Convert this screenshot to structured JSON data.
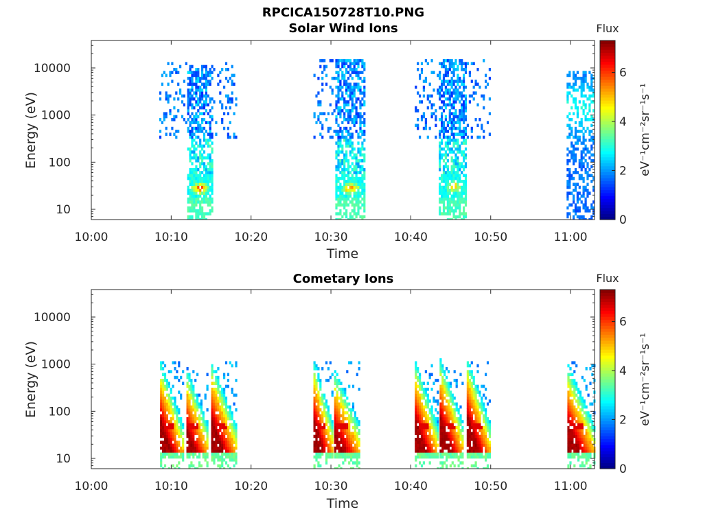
{
  "figure_title": "RPCICA150728T10.PNG",
  "colors": {
    "jet": [
      "#00008f",
      "#0000ff",
      "#0080ff",
      "#00ffff",
      "#80ff80",
      "#ffff00",
      "#ff8000",
      "#ff0000",
      "#800000"
    ]
  },
  "chart_data": [
    {
      "type": "heatmap",
      "title": "Solar Wind Ions",
      "xlabel": "Time",
      "ylabel": "Energy (eV)",
      "y_scale": "log",
      "y_tick_labels": [
        "10",
        "100",
        "1000",
        "10000"
      ],
      "y_ticks": [
        10,
        100,
        1000,
        10000
      ],
      "x_tick_labels": [
        "10:00",
        "10:10",
        "10:20",
        "10:30",
        "10:40",
        "10:50",
        "11:00"
      ],
      "x_ticks_min": [
        0,
        10,
        20,
        30,
        40,
        50,
        60
      ],
      "xlim_min": [
        0,
        63
      ],
      "colorbar": {
        "title": "Flux",
        "label": "eV⁻¹cm⁻²sr⁻¹s⁻¹",
        "tick_labels": [
          "0",
          "2",
          "4",
          "6"
        ],
        "ticks": [
          0,
          2,
          4,
          6
        ],
        "range": [
          0,
          7.3
        ]
      },
      "bursts": [
        {
          "start_min": 8.5,
          "end_min": 18.2,
          "core_start_min": 11.8,
          "core_end_min": 15.2,
          "scatter_emax": 14000,
          "core_emax": 12000,
          "peak_energy_ev": 28,
          "peak_flux": 6.2
        },
        {
          "start_min": 27.8,
          "end_min": 34.2,
          "core_start_min": 30.5,
          "core_end_min": 34.2,
          "scatter_emax": 16000,
          "core_emax": 15000,
          "peak_energy_ev": 28,
          "peak_flux": 5.8
        },
        {
          "start_min": 40.5,
          "end_min": 50.0,
          "core_start_min": 43.5,
          "core_end_min": 47.0,
          "scatter_emax": 16000,
          "core_emax": 15000,
          "peak_energy_ev": 30,
          "peak_flux": 5.6
        },
        {
          "start_min": 59.5,
          "end_min": 63.0,
          "core_start_min": 59.5,
          "core_end_min": 63.0,
          "scatter_emax": 10000,
          "core_emax": 9000,
          "peak_energy_ev": 1500,
          "peak_flux": 2.4
        }
      ]
    },
    {
      "type": "heatmap",
      "title": "Cometary Ions",
      "xlabel": "Time",
      "ylabel": "Energy (eV)",
      "y_scale": "log",
      "y_tick_labels": [
        "10",
        "100",
        "1000",
        "10000"
      ],
      "y_ticks": [
        10,
        100,
        1000,
        10000
      ],
      "x_tick_labels": [
        "10:00",
        "10:10",
        "10:20",
        "10:30",
        "10:40",
        "10:50",
        "11:00"
      ],
      "x_ticks_min": [
        0,
        10,
        20,
        30,
        40,
        50,
        60
      ],
      "xlim_min": [
        0,
        63
      ],
      "colorbar": {
        "title": "Flux",
        "label": "eV⁻¹cm⁻²sr⁻¹s⁻¹",
        "tick_labels": [
          "0",
          "2",
          "4",
          "6"
        ],
        "ticks": [
          0,
          2,
          4,
          6
        ],
        "range": [
          0,
          7.3
        ]
      },
      "dispersion_events": [
        {
          "start_min": 8.6,
          "end_min": 11.5,
          "e_start_ev": 300,
          "e_end_ev": 12
        },
        {
          "start_min": 11.9,
          "end_min": 14.5,
          "e_start_ev": 200,
          "e_end_ev": 14
        },
        {
          "start_min": 15.0,
          "end_min": 18.2,
          "e_start_ev": 300,
          "e_end_ev": 12
        },
        {
          "start_min": 27.8,
          "end_min": 30.3,
          "e_start_ev": 300,
          "e_end_ev": 12
        },
        {
          "start_min": 30.4,
          "end_min": 33.5,
          "e_start_ev": 200,
          "e_end_ev": 14
        },
        {
          "start_min": 40.5,
          "end_min": 43.4,
          "e_start_ev": 300,
          "e_end_ev": 12
        },
        {
          "start_min": 43.6,
          "end_min": 46.6,
          "e_start_ev": 350,
          "e_end_ev": 12
        },
        {
          "start_min": 47.0,
          "end_min": 50.0,
          "e_start_ev": 350,
          "e_end_ev": 12
        },
        {
          "start_min": 59.6,
          "end_min": 63.0,
          "e_start_ev": 250,
          "e_end_ev": 12
        }
      ]
    }
  ]
}
